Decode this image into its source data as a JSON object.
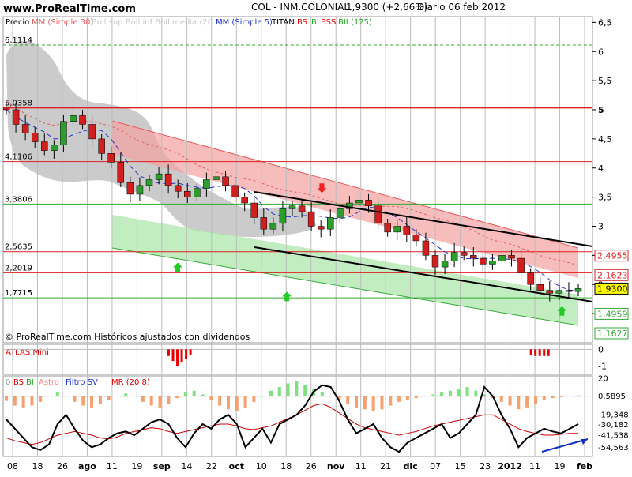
{
  "header": {
    "site": "www.ProRealTime.com",
    "instrument": "COL - INM.COLONIAL",
    "last": "1,9300 (+2,66%)",
    "period": "Diario  06 feb 2012"
  },
  "legend": {
    "precio": "Precio",
    "mm30": "MM (Simple 30)",
    "boll": "Boll sup Boll inf Boll media (20 2)",
    "mm5": "MM (Simple 5)",
    "titan": "TITAN",
    "bs": "BS",
    "bi": "BI",
    "bss": "BSS",
    "bii": "BII (125)"
  },
  "colors": {
    "price_up": "#2c9e2c",
    "price_down": "#d11f1f",
    "resistance": "#dd2020",
    "support": "#33aa33",
    "trend_channel": "#000000",
    "bollinger_cloud": "#a8a8a8",
    "red_band": "#f3a0a0",
    "green_band": "#a6e6a6",
    "mm5": "#2233cc",
    "atlas_bars": "#ee0000",
    "osc_positive": "#7fe07f",
    "osc_negative": "#f4a070",
    "filtro_sv": "#000000",
    "mr": "#cc0000",
    "blue_arrow": "#1133bb"
  },
  "footer_note": "© ProRealTime.com Históricos ajustados con dividendos",
  "chart_data": [
    {
      "type": "candlestick",
      "title": "COL - INM.COLONIAL",
      "x_ticks": [
        "08",
        "18",
        "26",
        "ago",
        "11",
        "19",
        "sep",
        "14",
        "22",
        "oct",
        "10",
        "18",
        "26",
        "nov",
        "11",
        "21",
        "dic",
        "07",
        "15",
        "23",
        "2012",
        "11",
        "19",
        "feb"
      ],
      "y_ticks": [
        "6,5",
        "6",
        "5,5",
        "5",
        "4,5",
        "4",
        "3,5",
        "3",
        "2,5",
        "2",
        "1,5"
      ],
      "ylim": [
        1.0,
        6.6
      ],
      "close_series": [
        5.0,
        4.75,
        4.6,
        4.45,
        4.3,
        4.4,
        4.8,
        4.9,
        4.75,
        4.5,
        4.25,
        4.1,
        3.75,
        3.55,
        3.7,
        3.8,
        3.9,
        3.7,
        3.6,
        3.5,
        3.65,
        3.8,
        3.85,
        3.7,
        3.5,
        3.4,
        3.15,
        2.95,
        3.05,
        3.3,
        3.35,
        3.25,
        3.0,
        2.95,
        3.15,
        3.3,
        3.4,
        3.45,
        3.35,
        3.05,
        2.9,
        3.0,
        2.85,
        2.75,
        2.5,
        2.3,
        2.4,
        2.55,
        2.5,
        2.45,
        2.35,
        2.4,
        2.5,
        2.45,
        2.2,
        2.0,
        1.9,
        1.85,
        1.9,
        1.88,
        1.93
      ],
      "horizontal_levels": [
        {
          "label": "6,1114",
          "value": 6.1114,
          "style": "support-dashed"
        },
        {
          "label": "5,0358",
          "value": 5.0358,
          "style": "resistance-thick"
        },
        {
          "label": "4,1106",
          "value": 4.1106,
          "style": "resistance"
        },
        {
          "label": "3,3806",
          "value": 3.3806,
          "style": "support"
        },
        {
          "label": "2,5635",
          "value": 2.5635,
          "style": "resistance"
        },
        {
          "label": "2,2019",
          "value": 2.2019,
          "style": "resistance"
        },
        {
          "label": "1,7715",
          "value": 1.7715,
          "style": "support"
        }
      ],
      "right_labels": [
        {
          "label": "2,4955",
          "value": 2.4955,
          "color": "#dd2020"
        },
        {
          "label": "2,1623",
          "value": 2.1623,
          "color": "#dd2020"
        },
        {
          "label": "1,9300",
          "value": 1.93,
          "color": "#000000",
          "highlight": true
        },
        {
          "label": "1,4959",
          "value": 1.4959,
          "color": "#33aa33"
        },
        {
          "label": "1,1627",
          "value": 1.1627,
          "color": "#33aa33"
        }
      ],
      "annotations": [
        {
          "type": "arrow-down",
          "x": 73,
          "value": 3.6,
          "color": "#ee2222"
        },
        {
          "type": "arrow-up",
          "x": 40,
          "value": 2.35,
          "color": "#22cc22"
        },
        {
          "type": "arrow-up",
          "x": 65,
          "value": 1.85,
          "color": "#22cc22"
        },
        {
          "type": "arrow-up",
          "x": 128,
          "value": 1.6,
          "color": "#22cc22"
        }
      ]
    },
    {
      "type": "bar",
      "title": "ATLAS Mini",
      "y_ticks": [
        "0",
        "-1"
      ],
      "ylim": [
        -1.5,
        0.3
      ],
      "values_at": [
        {
          "x": 38,
          "value": -0.4
        },
        {
          "x": 39,
          "value": -0.7
        },
        {
          "x": 40,
          "value": -1.0
        },
        {
          "x": 41,
          "value": -0.8
        },
        {
          "x": 42,
          "value": -0.6
        },
        {
          "x": 43,
          "value": -0.35
        },
        {
          "x": 121,
          "value": -0.35
        },
        {
          "x": 122,
          "value": -0.4
        },
        {
          "x": 123,
          "value": -0.4
        },
        {
          "x": 124,
          "value": -0.4
        },
        {
          "x": 125,
          "value": -0.4
        }
      ]
    },
    {
      "type": "line",
      "title": "0 BS BI Astro Filtro SV MR (20 8)",
      "legend": [
        "0",
        "BS",
        "BI",
        "Astro",
        "Filtro SV",
        "MR (20 8)"
      ],
      "y_ticks": [
        "20",
        "0",
        "-19,348",
        "-30,182",
        "-41,538",
        "-54,563"
      ],
      "labels": [
        {
          "label": "0,5895",
          "value": 0.5895
        },
        {
          "label": "-19,348",
          "value": -19.348
        },
        {
          "label": "-30,182",
          "value": -30.182
        },
        {
          "label": "-41,538",
          "value": -41.538
        },
        {
          "label": "-54,563",
          "value": -54.563
        }
      ],
      "ylim": [
        -65,
        22
      ],
      "filtro_sv": [
        -25,
        -35,
        -45,
        -55,
        -58,
        -52,
        -30,
        -20,
        -35,
        -48,
        -55,
        -52,
        -45,
        -40,
        -38,
        -42,
        -35,
        -28,
        -25,
        -30,
        -45,
        -55,
        -40,
        -30,
        -35,
        -25,
        -20,
        -30,
        -55,
        -45,
        -35,
        -50,
        -30,
        -25,
        -20,
        -10,
        5,
        12,
        10,
        -5,
        -25,
        -40,
        -35,
        -30,
        -45,
        -55,
        -60,
        -50,
        -45,
        -40,
        -35,
        -30,
        -45,
        -40,
        -30,
        -20,
        10,
        0,
        -20,
        -35,
        -55,
        -45,
        -40,
        -35,
        -38,
        -40,
        -35,
        -30
      ],
      "mr": [
        -45,
        -48,
        -50,
        -52,
        -50,
        -46,
        -42,
        -40,
        -38,
        -40,
        -42,
        -45,
        -46,
        -44,
        -40,
        -38,
        -36,
        -34,
        -35,
        -38,
        -40,
        -38,
        -36,
        -34,
        -32,
        -30,
        -30,
        -32,
        -35,
        -36,
        -34,
        -32,
        -28,
        -24,
        -20,
        -15,
        -10,
        -8,
        -12,
        -18,
        -24,
        -30,
        -34,
        -36,
        -38,
        -40,
        -42,
        -40,
        -38,
        -35,
        -32,
        -30,
        -28,
        -26,
        -24,
        -22,
        -20,
        -20,
        -25,
        -30,
        -35,
        -38,
        -40,
        -42,
        -42,
        -41,
        -40,
        -40
      ],
      "astro": [
        -5,
        -10,
        -12,
        -10,
        -6,
        0,
        4,
        0,
        -6,
        -10,
        -12,
        -8,
        -4,
        0,
        3,
        0,
        -6,
        -10,
        -12,
        -8,
        -2,
        4,
        6,
        2,
        -4,
        -10,
        -14,
        -16,
        -12,
        -6,
        0,
        6,
        10,
        14,
        16,
        12,
        8,
        4,
        0,
        -4,
        -8,
        -12,
        -14,
        -16,
        -14,
        -10,
        -6,
        -4,
        -2,
        0,
        2,
        4,
        6,
        8,
        10,
        6,
        2,
        -2,
        -6,
        -10,
        -14,
        -12,
        -8,
        -4,
        -2,
        -1,
        0,
        1
      ]
    }
  ]
}
